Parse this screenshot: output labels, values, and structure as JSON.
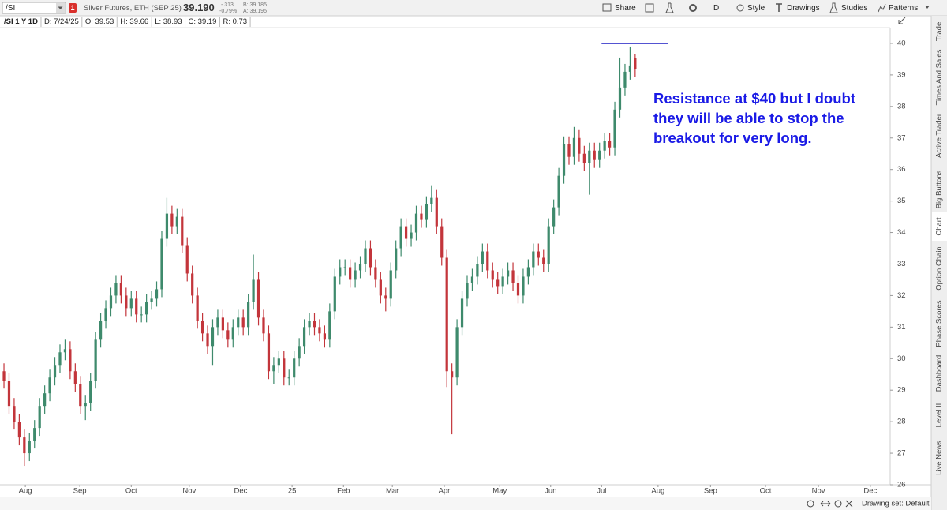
{
  "toolbar": {
    "symbol": "/SI",
    "badge": "1",
    "description": "Silver Futures, ETH (SEP 25)",
    "last": "39.190",
    "change": "-.313",
    "change_pct": "-0.79%",
    "bid": "B: 39.185",
    "ask": "A: 39.195",
    "buttons": [
      "Share",
      "D",
      "Style",
      "Drawings",
      "Studies",
      "Patterns"
    ]
  },
  "info_bar": [
    "/SI 1 Y 1D",
    "D: 7/24/25",
    "O: 39.53",
    "H: 39.66",
    "L: 38.93",
    "C: 39.19",
    "R: 0.73"
  ],
  "sidebar": [
    "Trade",
    "Times And Sales",
    "Active Trader",
    "Big Buttons",
    "Chart",
    "Option Chain",
    "Phase Scores",
    "Dashboard",
    "Level II",
    "Live News"
  ],
  "status_bar": "Drawing set: Default",
  "chart_data": {
    "type": "candlestick",
    "open": [
      29.6,
      29.3,
      28.5,
      28.0,
      27.5,
      27.0,
      27.4,
      27.8,
      28.5,
      28.9,
      29.4,
      29.8,
      30.2,
      30.3,
      29.6,
      29.2,
      28.5,
      28.6,
      29.3,
      30.6,
      31.2,
      31.6,
      32.0,
      32.4,
      32.0,
      31.6,
      31.9,
      31.4,
      31.4,
      31.8,
      31.9,
      32.2,
      33.8,
      34.6,
      34.2,
      34.5,
      33.6,
      32.7,
      32.0,
      31.2,
      30.8,
      30.4,
      31.0,
      31.3,
      30.9,
      30.6,
      31.0,
      31.3,
      31.0,
      31.8,
      32.5,
      31.3,
      30.8,
      29.6,
      29.8,
      30.0,
      29.4,
      29.4,
      30.0,
      30.4,
      31.0,
      31.2,
      31.0,
      30.8,
      30.6,
      31.5,
      32.6,
      32.9,
      32.9,
      32.5,
      32.8,
      33.0,
      33.5,
      32.9,
      32.5,
      32.0,
      31.9,
      32.8,
      33.5,
      34.2,
      33.8,
      34.0,
      34.6,
      34.4,
      34.9,
      35.1,
      34.2,
      33.2,
      29.6,
      29.4,
      31.0,
      31.9,
      32.4,
      32.6,
      33.0,
      33.4,
      32.8,
      32.5,
      32.3,
      32.6,
      32.8,
      32.4,
      32.0,
      32.6,
      32.9,
      33.4,
      33.2,
      33.0,
      34.2,
      34.8,
      35.8,
      36.8,
      36.4,
      37.0,
      36.5,
      36.2,
      36.6,
      36.3,
      36.6,
      36.9,
      36.7,
      37.9,
      38.6,
      39.1,
      39.53
    ],
    "high": [
      29.85,
      29.55,
      28.75,
      28.25,
      27.75,
      27.65,
      28.05,
      28.75,
      29.15,
      29.65,
      30.05,
      30.45,
      30.6,
      30.55,
      29.85,
      29.45,
      28.85,
      29.55,
      30.85,
      31.45,
      31.85,
      32.25,
      32.65,
      32.65,
      32.25,
      32.15,
      32.15,
      31.65,
      32.05,
      32.15,
      32.45,
      34.05,
      35.1,
      34.85,
      34.75,
      34.75,
      33.85,
      32.95,
      32.25,
      31.45,
      31.05,
      31.25,
      31.55,
      31.55,
      31.15,
      31.25,
      31.55,
      31.55,
      32.05,
      33.3,
      32.75,
      31.55,
      31.05,
      30.05,
      30.25,
      30.25,
      29.65,
      30.25,
      30.65,
      31.25,
      31.45,
      31.45,
      31.25,
      31.05,
      31.75,
      32.85,
      33.15,
      33.15,
      33.15,
      33.05,
      33.25,
      33.75,
      33.75,
      33.15,
      32.75,
      32.25,
      33.05,
      33.75,
      34.45,
      34.45,
      34.25,
      34.85,
      34.85,
      35.15,
      35.5,
      35.35,
      34.45,
      33.45,
      29.85,
      31.25,
      32.15,
      32.65,
      32.85,
      33.25,
      33.65,
      33.65,
      33.05,
      32.75,
      32.85,
      33.05,
      33.05,
      32.65,
      32.85,
      33.15,
      33.65,
      33.65,
      33.45,
      34.45,
      35.05,
      36.05,
      37.05,
      37.05,
      37.35,
      37.25,
      36.75,
      36.85,
      36.85,
      36.85,
      37.15,
      37.15,
      38.15,
      39.55,
      39.35,
      39.9,
      39.66
    ],
    "low": [
      29.05,
      28.25,
      27.75,
      27.25,
      26.6,
      26.75,
      27.15,
      27.55,
      28.25,
      28.65,
      29.15,
      29.55,
      29.95,
      29.35,
      28.95,
      28.25,
      28.05,
      28.35,
      29.05,
      30.35,
      30.95,
      31.35,
      31.75,
      31.75,
      31.35,
      31.35,
      31.15,
      31.15,
      31.15,
      31.55,
      31.65,
      31.95,
      33.55,
      33.95,
      33.95,
      33.35,
      32.45,
      31.75,
      30.95,
      30.55,
      30.15,
      29.8,
      30.75,
      30.65,
      30.35,
      30.35,
      30.75,
      30.75,
      30.75,
      31.55,
      31.05,
      30.55,
      29.35,
      29.2,
      29.55,
      29.15,
      29.15,
      29.15,
      29.75,
      30.15,
      30.75,
      30.75,
      30.55,
      30.35,
      30.35,
      31.25,
      32.35,
      32.65,
      32.25,
      32.25,
      32.55,
      32.75,
      32.65,
      32.25,
      31.75,
      31.5,
      31.65,
      32.55,
      33.25,
      33.55,
      33.55,
      33.75,
      34.15,
      34.15,
      34.65,
      33.95,
      32.95,
      29.1,
      27.6,
      29.15,
      30.75,
      31.65,
      32.15,
      32.35,
      32.75,
      32.55,
      32.25,
      32.05,
      32.05,
      32.35,
      32.15,
      31.75,
      31.75,
      32.35,
      32.65,
      32.95,
      32.75,
      32.75,
      33.95,
      34.55,
      35.55,
      36.15,
      36.15,
      36.25,
      35.95,
      35.2,
      36.05,
      36.05,
      36.35,
      36.45,
      36.45,
      37.65,
      38.35,
      38.85,
      38.93
    ],
    "close": [
      29.3,
      28.5,
      28.0,
      27.5,
      27.0,
      27.4,
      27.8,
      28.5,
      28.9,
      29.4,
      29.8,
      30.2,
      30.3,
      29.6,
      29.2,
      28.5,
      28.6,
      29.3,
      30.6,
      31.2,
      31.6,
      32.0,
      32.4,
      32.0,
      31.6,
      31.9,
      31.4,
      31.4,
      31.8,
      31.9,
      32.2,
      33.8,
      34.6,
      34.2,
      34.5,
      33.6,
      32.7,
      32.0,
      31.2,
      30.8,
      30.4,
      31.0,
      31.3,
      30.9,
      30.6,
      31.0,
      31.3,
      31.0,
      31.8,
      32.5,
      31.3,
      30.8,
      29.6,
      29.8,
      30.0,
      29.4,
      29.4,
      30.0,
      30.4,
      31.0,
      31.2,
      31.0,
      30.8,
      30.6,
      31.5,
      32.6,
      32.9,
      32.9,
      32.5,
      32.8,
      33.0,
      33.5,
      32.9,
      32.5,
      32.0,
      31.9,
      32.8,
      33.5,
      34.2,
      33.8,
      34.0,
      34.6,
      34.4,
      34.9,
      35.1,
      34.2,
      33.2,
      29.6,
      29.4,
      31.0,
      31.9,
      32.4,
      32.6,
      33.0,
      33.4,
      32.8,
      32.5,
      32.3,
      32.6,
      32.8,
      32.4,
      32.0,
      32.6,
      32.9,
      33.4,
      33.2,
      33.0,
      34.2,
      34.8,
      35.8,
      36.8,
      36.4,
      37.0,
      36.5,
      36.2,
      36.6,
      36.3,
      36.6,
      36.9,
      36.7,
      37.9,
      38.6,
      39.1,
      39.3,
      39.19
    ],
    "up_color": "#3e8a6c",
    "down_color": "#c3353b",
    "ylim": [
      26,
      40.5
    ],
    "yticks": [
      26,
      27,
      28,
      29,
      30,
      31,
      32,
      33,
      34,
      35,
      36,
      37,
      38,
      39,
      40
    ],
    "xlim": [
      -0.78,
      174.1
    ],
    "xticks": [
      {
        "value": 4.2,
        "label": "Aug"
      },
      {
        "value": 14.9,
        "label": "Sep"
      },
      {
        "value": 25.0,
        "label": "Oct"
      },
      {
        "value": 36.4,
        "label": "Nov"
      },
      {
        "value": 46.5,
        "label": "Dec"
      },
      {
        "value": 56.6,
        "label": "25"
      },
      {
        "value": 66.7,
        "label": "Feb"
      },
      {
        "value": 76.3,
        "label": "Mar"
      },
      {
        "value": 86.5,
        "label": "Apr"
      },
      {
        "value": 97.4,
        "label": "May"
      },
      {
        "value": 107.4,
        "label": "Jun"
      },
      {
        "value": 117.4,
        "label": "Jul"
      },
      {
        "value": 128.5,
        "label": "Aug"
      },
      {
        "value": 138.8,
        "label": "Sep"
      },
      {
        "value": 149.6,
        "label": "Oct"
      },
      {
        "value": 160.0,
        "label": "Nov"
      },
      {
        "value": 170.2,
        "label": "Dec"
      }
    ],
    "hline": {
      "value": 40,
      "x": [
        117.4,
        130.5
      ],
      "color": "#1c1cc4"
    },
    "annotation": [
      "Resistance at $40 but I doubt",
      "they will be able to stop the",
      "breakout for very long."
    ],
    "annotation_color": "#1a1ae6"
  }
}
